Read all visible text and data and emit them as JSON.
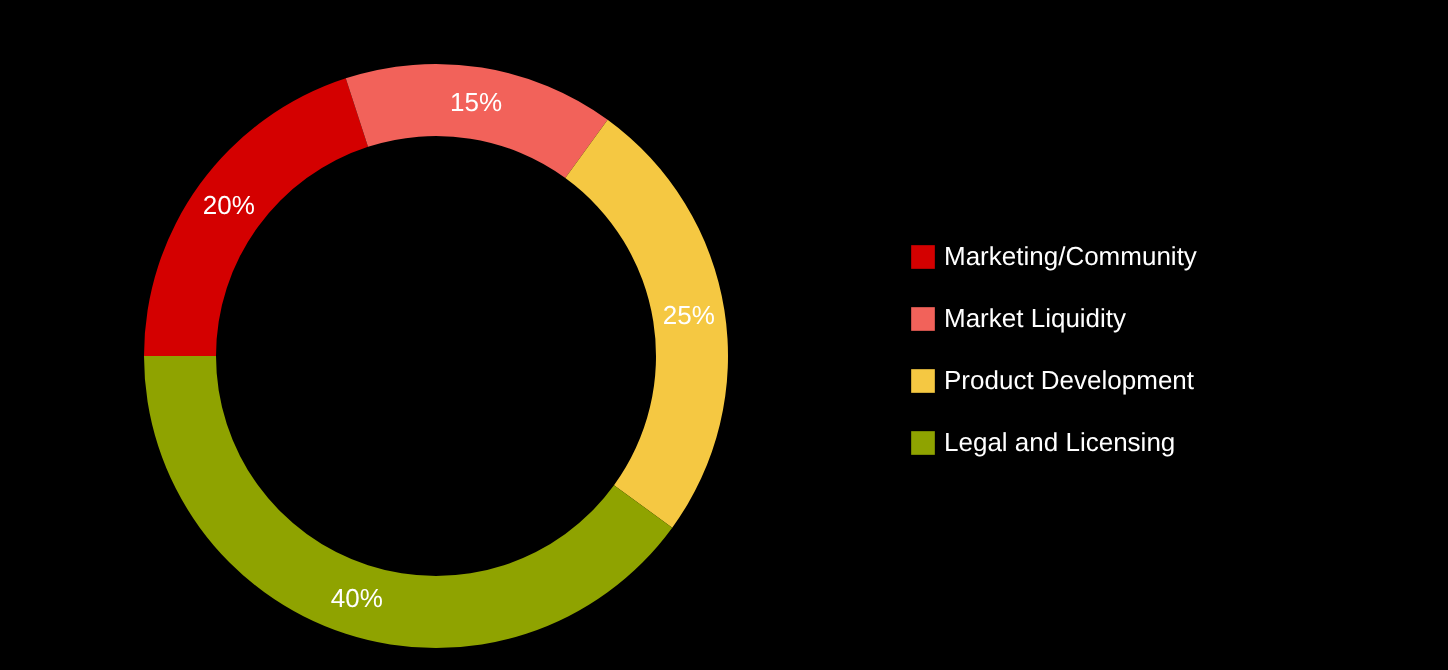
{
  "chart_data": {
    "type": "donut",
    "categories": [
      "Marketing/Community",
      "Market Liquidity",
      "Product Development",
      "Legal and Licensing"
    ],
    "values": [
      20,
      15,
      25,
      40
    ],
    "value_labels": [
      "20%",
      "15%",
      "25%",
      "40%"
    ],
    "colors": [
      "#d40000",
      "#f2625a",
      "#f5c842",
      "#8fa300"
    ],
    "legend": "right"
  }
}
